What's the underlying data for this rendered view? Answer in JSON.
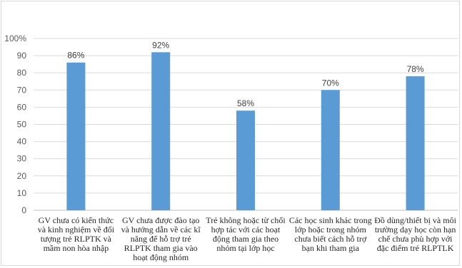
{
  "chart_data": {
    "type": "bar",
    "title": "",
    "xlabel": "",
    "ylabel": "",
    "ylim": [
      0,
      100
    ],
    "yticks": [
      "0",
      "10",
      "20",
      "30",
      "40",
      "50",
      "60",
      "70",
      "80",
      "90",
      "100%"
    ],
    "grid": true,
    "legend": "none",
    "bar_color": "#5b9bd5",
    "categories": [
      "GV chưa có kiến thức và kinh nghiệm về đối tượng trẻ RLPTK và mầm non hòa nhập",
      "GV chưa được đào tạo và hướng dẫn về các kĩ năng để hỗ trợ trẻ RLPTK tham gia vào hoạt động nhóm",
      "Trẻ không hoặc từ chối hợp tác với các hoạt động tham gia theo nhóm tại lớp học",
      "Các học sinh khác trong lớp hoặc trong nhóm chưa biết cách hỗ trợ bạn khi tham gia",
      "Đồ dùng/thiết bị và môi trường dạy học còn hạn chế chưa phù hợp với đặc điểm trẻ RLPTLK"
    ],
    "values": [
      86,
      92,
      58,
      70,
      78
    ],
    "data_labels": [
      "86%",
      "92%",
      "58%",
      "70%",
      "78%"
    ]
  }
}
